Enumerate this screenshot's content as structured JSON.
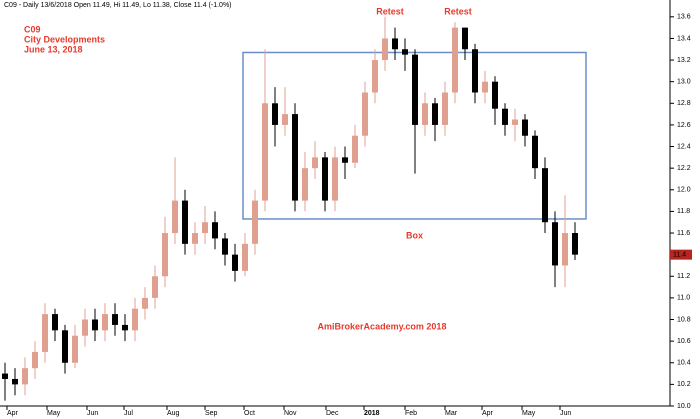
{
  "chart_data": {
    "type": "candlestick",
    "header": "C09 - Daily 13/6/2018 Open 11.49, Hi 11.49, Lo 11.38, Close 11.4 (-1.0%)",
    "annotations": [
      "C09",
      "City Developments",
      "June 13, 2018",
      "Retest",
      "Retest",
      "AmiBrokerAcademy.com  2018"
    ],
    "box": {
      "label": "Box",
      "x": [
        23.8,
        58.1
      ],
      "y": [
        11.73,
        13.27
      ],
      "color": "#6a8fc8"
    },
    "last_price": 11.4,
    "up_color": "#e0a090",
    "down_color": "#000000",
    "open": [
      10.3,
      10.25,
      10.2,
      10.35,
      10.5,
      10.85,
      10.7,
      10.4,
      10.65,
      10.8,
      10.7,
      10.85,
      10.75,
      10.7,
      10.9,
      11.0,
      11.2,
      11.6,
      11.9,
      11.5,
      11.6,
      11.7,
      11.55,
      11.4,
      11.25,
      11.5,
      11.9,
      12.8,
      12.6,
      12.7,
      11.9,
      12.2,
      12.3,
      11.9,
      12.3,
      12.25,
      12.5,
      12.9,
      13.2,
      13.4,
      13.3,
      13.25,
      12.6,
      12.8,
      12.6,
      12.9,
      13.5,
      13.3,
      12.9,
      13.0,
      12.75,
      12.6,
      12.65,
      12.5,
      12.2,
      11.7,
      11.3,
      11.6
    ],
    "high": [
      10.4,
      10.35,
      10.45,
      10.6,
      10.95,
      10.9,
      10.75,
      10.75,
      10.9,
      10.9,
      10.95,
      10.95,
      10.85,
      11.0,
      11.1,
      11.3,
      11.75,
      12.3,
      12.0,
      11.7,
      11.85,
      11.8,
      11.6,
      11.5,
      11.6,
      12.0,
      13.3,
      12.95,
      12.95,
      12.8,
      12.35,
      12.45,
      12.35,
      12.4,
      12.4,
      12.6,
      13.0,
      13.3,
      13.6,
      13.5,
      13.4,
      13.3,
      12.9,
      12.85,
      13.0,
      13.55,
      13.5,
      13.35,
      13.1,
      13.05,
      12.8,
      12.75,
      12.7,
      12.55,
      12.3,
      11.8,
      11.95,
      11.7
    ],
    "low": [
      10.05,
      10.1,
      10.1,
      10.25,
      10.4,
      10.6,
      10.3,
      10.35,
      10.55,
      10.6,
      10.6,
      10.65,
      10.6,
      10.6,
      10.8,
      10.9,
      11.1,
      11.5,
      11.4,
      11.4,
      11.5,
      11.45,
      11.3,
      11.15,
      11.2,
      11.4,
      11.8,
      12.4,
      12.5,
      11.8,
      11.8,
      12.1,
      11.8,
      11.8,
      12.1,
      12.2,
      12.4,
      12.8,
      13.1,
      13.2,
      13.1,
      12.15,
      12.5,
      12.45,
      12.5,
      12.8,
      13.2,
      12.8,
      12.8,
      12.6,
      12.5,
      12.45,
      12.4,
      12.1,
      11.6,
      11.1,
      11.1,
      11.35
    ],
    "close": [
      10.25,
      10.2,
      10.35,
      10.5,
      10.85,
      10.7,
      10.4,
      10.65,
      10.8,
      10.7,
      10.85,
      10.75,
      10.7,
      10.9,
      11.0,
      11.2,
      11.6,
      11.9,
      11.5,
      11.6,
      11.7,
      11.55,
      11.4,
      11.25,
      11.5,
      11.9,
      12.8,
      12.6,
      12.7,
      11.9,
      12.2,
      12.3,
      11.9,
      12.3,
      12.25,
      12.5,
      12.9,
      13.2,
      13.4,
      13.3,
      13.25,
      12.6,
      12.8,
      12.6,
      12.9,
      13.5,
      13.3,
      12.9,
      13.0,
      12.75,
      12.6,
      12.65,
      12.5,
      12.2,
      11.7,
      11.3,
      11.6,
      11.4
    ],
    "xlim": [
      -0.5,
      66.5
    ],
    "xticks": [
      {
        "value": 0.2,
        "label": "Apr"
      },
      {
        "value": 4.2,
        "label": "May"
      },
      {
        "value": 8.2,
        "label": "Jun"
      },
      {
        "value": 11.9,
        "label": "Jul"
      },
      {
        "value": 16.2,
        "label": "Aug"
      },
      {
        "value": 20,
        "label": "Sep"
      },
      {
        "value": 23.9,
        "label": "Oct"
      },
      {
        "value": 27.9,
        "label": "Nov"
      },
      {
        "value": 32.1,
        "label": "Dec"
      },
      {
        "value": 35.9,
        "label": "2018"
      },
      {
        "value": 40,
        "label": "Feb"
      },
      {
        "value": 44,
        "label": "Mar"
      },
      {
        "value": 47.7,
        "label": "Apr"
      },
      {
        "value": 51.7,
        "label": "May"
      },
      {
        "value": 55.5,
        "label": "Jun"
      }
    ],
    "ylim": [
      10.0,
      13.7
    ],
    "yticks": [
      {
        "value": 10,
        "label": "10.0"
      },
      10.2,
      10.4,
      10.6,
      10.8,
      {
        "value": 11,
        "label": "11.0"
      },
      11.2,
      11.4,
      11.6,
      11.8,
      {
        "value": 12,
        "label": "12.0"
      },
      12.2,
      12.4,
      12.6,
      12.8,
      {
        "value": 13,
        "label": "13.0"
      },
      13.2,
      13.4,
      13.6
    ]
  }
}
